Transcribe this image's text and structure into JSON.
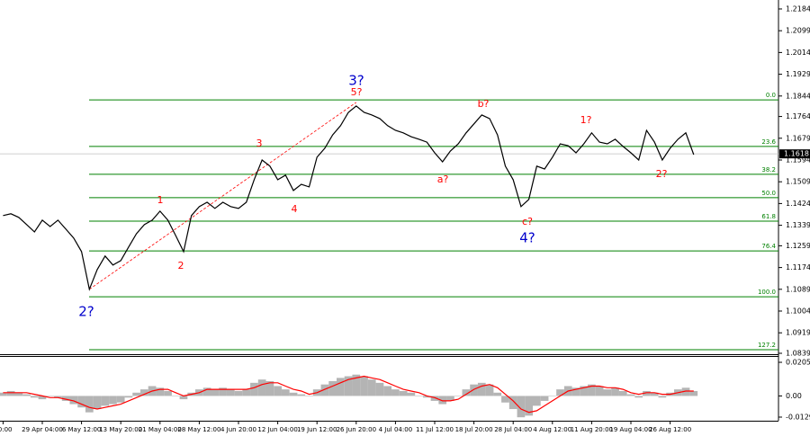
{
  "chart_data": [
    {
      "type": "line",
      "color": "#000000",
      "categories": [
        "30:00",
        null,
        null,
        null,
        null,
        "29 Apr 04:00",
        null,
        null,
        null,
        null,
        "6 May 12:00",
        null,
        null,
        null,
        null,
        "13 May 20:00",
        null,
        null,
        null,
        null,
        "21 May 04:00",
        null,
        null,
        null,
        null,
        "28 May 12:00",
        null,
        null,
        null,
        null,
        "4 Jun 20:00",
        null,
        null,
        null,
        null,
        "12 Jun 04:00",
        null,
        null,
        null,
        null,
        "19 Jun 12:00",
        null,
        null,
        null,
        null,
        "26 Jun 20:00",
        null,
        null,
        null,
        null,
        "4 Jul 04:00",
        null,
        null,
        null,
        null,
        "11 Jul 12:00",
        null,
        null,
        null,
        null,
        "18 Jul 20:00",
        null,
        null,
        null,
        null,
        "28 Jul 04:00",
        null,
        null,
        null,
        null,
        "4 Aug 12:00",
        null,
        null,
        null,
        null,
        "11 Aug 20:00",
        null,
        null,
        null,
        null,
        "19 Aug 04:00",
        null,
        null,
        null,
        null,
        "26 Aug 12:00",
        null,
        null,
        null
      ],
      "values": [
        1.1377,
        1.1384,
        1.137,
        1.1342,
        1.1313,
        1.1359,
        1.1334,
        1.1359,
        1.1324,
        1.1289,
        1.1236,
        1.1089,
        1.1166,
        1.1219,
        1.1184,
        1.1201,
        1.1254,
        1.1306,
        1.1342,
        1.1359,
        1.1394,
        1.1359,
        1.1299,
        1.1236,
        1.1377,
        1.1412,
        1.1429,
        1.1405,
        1.1429,
        1.1412,
        1.1405,
        1.1429,
        1.1517,
        1.1594,
        1.157,
        1.1517,
        1.1535,
        1.1475,
        1.1499,
        1.1489,
        1.1605,
        1.164,
        1.1692,
        1.1728,
        1.178,
        1.1805,
        1.178,
        1.177,
        1.1756,
        1.1728,
        1.171,
        1.17,
        1.1685,
        1.1675,
        1.1664,
        1.1622,
        1.1587,
        1.1629,
        1.1657,
        1.17,
        1.1735,
        1.177,
        1.1756,
        1.1692,
        1.157,
        1.1517,
        1.1412,
        1.144,
        1.157,
        1.1559,
        1.1605,
        1.1657,
        1.165,
        1.1622,
        1.1657,
        1.17,
        1.1664,
        1.1657,
        1.1675,
        1.1647,
        1.1622,
        1.1594,
        1.171,
        1.1664,
        1.1594,
        1.164,
        1.1675,
        1.17,
        1.1615
      ],
      "ylim": [
        1.0839,
        1.2219
      ],
      "yticks": [
        1.2184,
        1.2099,
        1.2014,
        1.1929,
        1.1844,
        1.1764,
        1.1679,
        1.1594,
        1.1509,
        1.1424,
        1.1339,
        1.1259,
        1.1174,
        1.1089,
        1.1004,
        1.0919,
        1.0839
      ],
      "current_price": 1.1618,
      "fib_color": "#008000",
      "fib_levels": [
        {
          "label": "0.0",
          "value": 1.1829
        },
        {
          "label": "23.6",
          "value": 1.1647
        },
        {
          "label": "38.2",
          "value": 1.1538
        },
        {
          "label": "50.0",
          "value": 1.1447
        },
        {
          "label": "61.8",
          "value": 1.1355
        },
        {
          "label": "76.4",
          "value": 1.1239
        },
        {
          "label": "100.0",
          "value": 1.106
        },
        {
          "label": "127.2",
          "value": 1.0853
        }
      ],
      "annotations": [
        "3?",
        "5?",
        "b?",
        "1?",
        "3",
        "1",
        "2",
        "4",
        "a?",
        "c?",
        "4?",
        "2?",
        "2?"
      ]
    },
    {
      "type": "bar",
      "color": "#b4b4b4",
      "line_color": "#ff0000",
      "values": [
        0.002,
        0.003,
        0.002,
        0.001,
        -0.001,
        -0.002,
        0.0,
        -0.001,
        -0.003,
        -0.005,
        -0.007,
        -0.01,
        -0.008,
        -0.006,
        -0.005,
        -0.004,
        -0.001,
        0.002,
        0.004,
        0.006,
        0.005,
        0.003,
        0.0,
        -0.002,
        0.002,
        0.004,
        0.005,
        0.004,
        0.005,
        0.004,
        0.003,
        0.004,
        0.008,
        0.01,
        0.009,
        0.006,
        0.004,
        0.002,
        0.001,
        0.0,
        0.004,
        0.007,
        0.009,
        0.011,
        0.012,
        0.013,
        0.012,
        0.01,
        0.008,
        0.006,
        0.004,
        0.003,
        0.002,
        0.0,
        -0.001,
        -0.003,
        -0.005,
        -0.003,
        0.0,
        0.004,
        0.007,
        0.008,
        0.007,
        0.002,
        -0.004,
        -0.008,
        -0.013,
        -0.012,
        -0.006,
        -0.003,
        0.0,
        0.004,
        0.006,
        0.005,
        0.006,
        0.007,
        0.006,
        0.004,
        0.005,
        0.003,
        0.001,
        -0.001,
        0.003,
        0.002,
        -0.001,
        0.002,
        0.004,
        0.005,
        0.003
      ],
      "line_values": [
        0.002,
        0.002,
        0.002,
        0.002,
        0.001,
        0.0,
        -0.001,
        -0.001,
        -0.002,
        -0.003,
        -0.005,
        -0.007,
        -0.008,
        -0.007,
        -0.006,
        -0.005,
        -0.003,
        -0.001,
        0.001,
        0.003,
        0.004,
        0.004,
        0.002,
        0.0,
        0.001,
        0.002,
        0.004,
        0.004,
        0.004,
        0.004,
        0.004,
        0.004,
        0.005,
        0.007,
        0.008,
        0.008,
        0.006,
        0.004,
        0.003,
        0.001,
        0.002,
        0.004,
        0.006,
        0.008,
        0.01,
        0.011,
        0.012,
        0.011,
        0.01,
        0.008,
        0.006,
        0.004,
        0.003,
        0.002,
        0.0,
        -0.001,
        -0.003,
        -0.003,
        -0.002,
        0.001,
        0.004,
        0.006,
        0.007,
        0.005,
        0.001,
        -0.003,
        -0.008,
        -0.01,
        -0.009,
        -0.006,
        -0.003,
        0.0,
        0.003,
        0.004,
        0.005,
        0.006,
        0.006,
        0.005,
        0.005,
        0.004,
        0.002,
        0.001,
        0.002,
        0.002,
        0.001,
        0.001,
        0.002,
        0.003,
        0.003
      ],
      "ylim": [
        -0.0151,
        0.0238
      ],
      "yticks": [
        0.0205,
        {
          "value": 0,
          "label": "0.00"
        },
        -0.0129
      ]
    }
  ]
}
